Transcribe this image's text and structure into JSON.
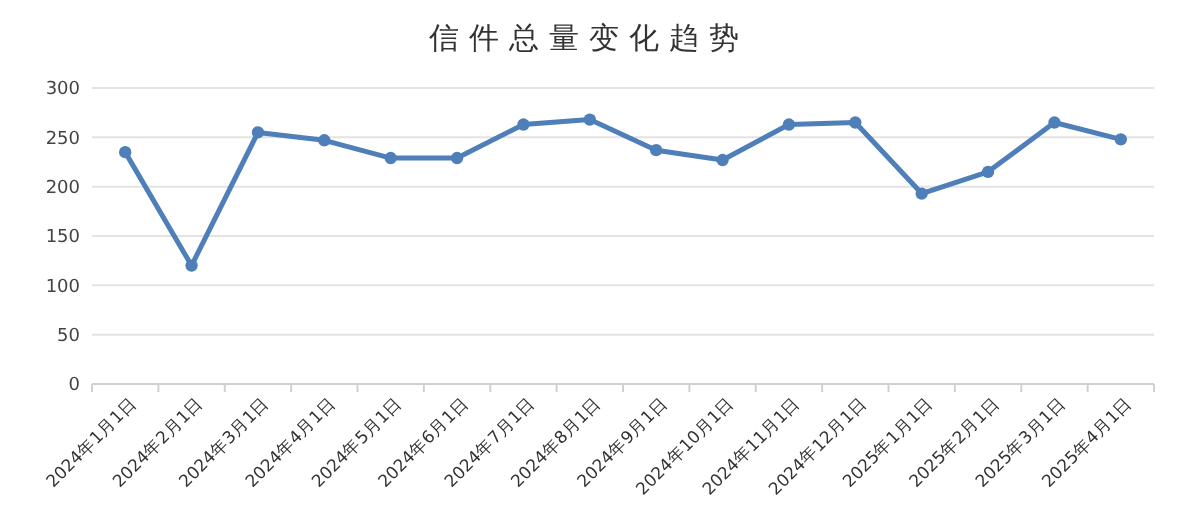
{
  "chart_data": {
    "type": "line",
    "title": "信件总量变化趋势",
    "categories": [
      "2024年1月1日",
      "2024年2月1日",
      "2024年3月1日",
      "2024年4月1日",
      "2024年5月1日",
      "2024年6月1日",
      "2024年7月1日",
      "2024年8月1日",
      "2024年9月1日",
      "2024年10月1日",
      "2024年11月1日",
      "2024年12月1日",
      "2025年1月1日",
      "2025年2月1日",
      "2025年3月1日",
      "2025年4月1日"
    ],
    "series": [
      {
        "color": "#4e7fb8",
        "values": [
          235,
          120,
          255,
          247,
          229,
          229,
          263,
          268,
          237,
          227,
          263,
          265,
          193,
          215,
          265,
          248
        ]
      }
    ],
    "ylim": [
      0,
      300
    ],
    "yticks": [
      0,
      50,
      100,
      150,
      200,
      250,
      300
    ],
    "grid": "y",
    "marker": "circle",
    "line_style": "solid"
  }
}
